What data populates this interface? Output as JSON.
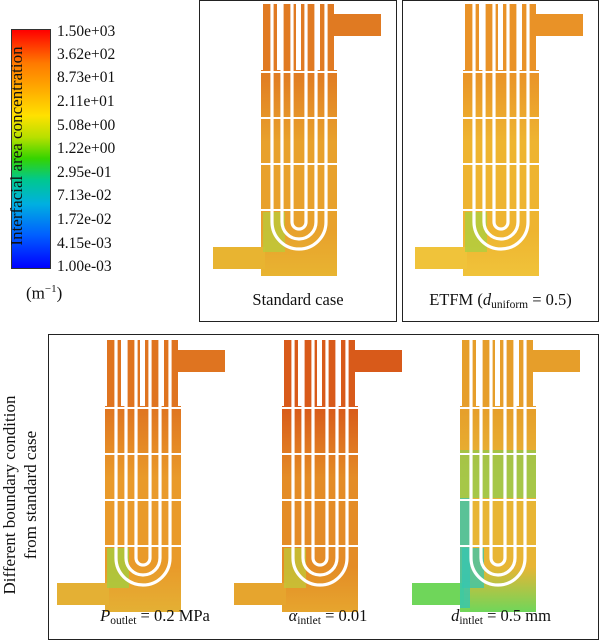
{
  "colorbar": {
    "title": "Interfacial area concentration",
    "unit_base": "(m",
    "unit_exp": "−1",
    "unit_close": ")",
    "ticks": [
      "1.50e+03",
      "3.62e+02",
      "8.73e+01",
      "2.11e+01",
      "5.08e+00",
      "1.22e+00",
      "2.95e-01",
      "7.13e-02",
      "1.72e-02",
      "4.15e-03",
      "1.00e-03"
    ],
    "scale": "log",
    "range": [
      0.001,
      1500
    ],
    "colormap": [
      "#ff0000",
      "#ff8800",
      "#ffee00",
      "#44dd00",
      "#00ccaa",
      "#0099ee",
      "#0000ff"
    ]
  },
  "group_label": {
    "line1": "Different boundary condition",
    "line2": "from standard case"
  },
  "panels": [
    {
      "id": "standard",
      "caption_text": "Standard case",
      "body": "#e8a12c",
      "top": "#e07a22",
      "bottom": "#e8b431",
      "accent": "#b8cc3a"
    },
    {
      "id": "etfm",
      "caption_prefix": "ETFM (",
      "caption_var": "d",
      "caption_sub": "uniform",
      "caption_suffix": " = 0.5)",
      "body": "#eeb430",
      "top": "#e99227",
      "bottom": "#f0c33a",
      "accent": "#a8d040"
    },
    {
      "id": "p_outlet",
      "caption_var": "P",
      "caption_sub": "outlet",
      "caption_suffix": " = 0.2 MPa",
      "body": "#e99a2a",
      "top": "#df7420",
      "bottom": "#e4b034",
      "accent": "#9fd040"
    },
    {
      "id": "alpha_inlet",
      "caption_var": "α",
      "caption_sub": "intlet",
      "caption_suffix": " = 0.01",
      "body": "#e48c26",
      "top": "#d85a1a",
      "bottom": "#e6a52e",
      "accent": "#c0c838"
    },
    {
      "id": "d_inlet",
      "caption_var": "d",
      "caption_sub": "intlet",
      "caption_suffix": " = 0.5 mm",
      "body": "#e8b534",
      "top": "#e69e2a",
      "bottom": "#6fd65a",
      "accent": "#36c6b0"
    }
  ]
}
